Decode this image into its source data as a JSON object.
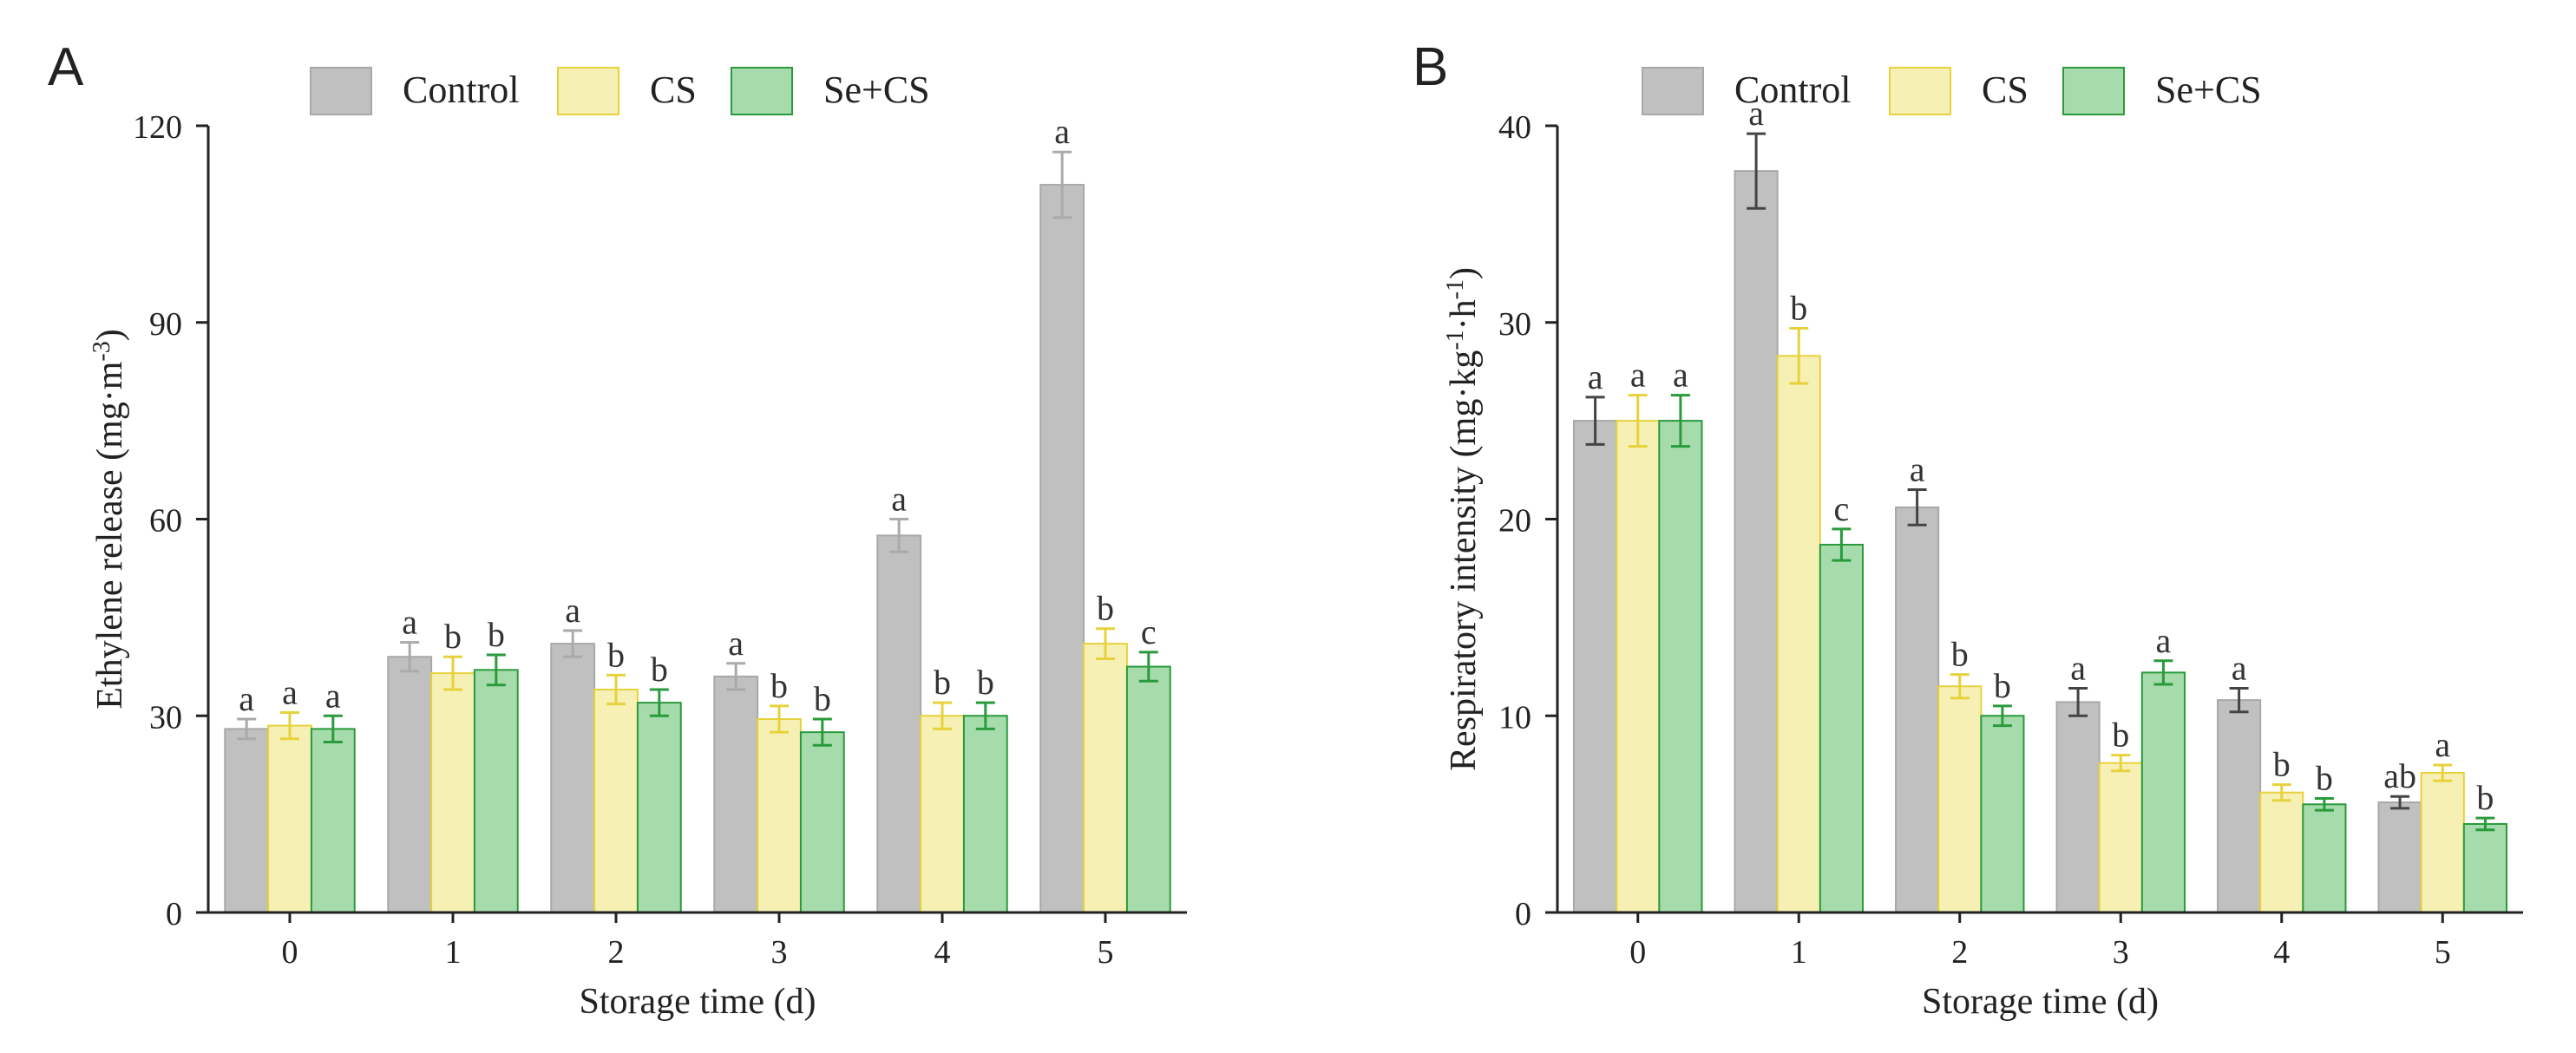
{
  "figure": {
    "colors": {
      "control_fill": "#c0c0c0",
      "control_stroke": "#a8a8a8",
      "control_err_left": "#aaaaaa",
      "control_err_right": "#444444",
      "cs_fill": "#f6f0b4",
      "cs_stroke": "#e6d23c",
      "cs_err": "#e6d23c",
      "secs_fill": "#a6dcac",
      "secs_stroke": "#2a9a3c",
      "secs_err": "#2a9a3c",
      "axis": "#222222",
      "text": "#222222"
    }
  },
  "chart_data": [
    {
      "type": "bar",
      "panel_label": "A",
      "xlabel": "Storage time (d)",
      "ylabel": "Ethylene release (mg·m",
      "ylabel_sup": "-3",
      "ylabel_tail": ")",
      "ylim": [
        0,
        120
      ],
      "yticks": [
        0,
        30,
        60,
        90,
        120
      ],
      "categories": [
        "0",
        "1",
        "2",
        "3",
        "4",
        "5"
      ],
      "legend_position": "top",
      "control_err_style": "light",
      "series": [
        {
          "name": "Control",
          "values": [
            28,
            39,
            41,
            36,
            57.5,
            111
          ],
          "errors": [
            1.5,
            2.2,
            2.0,
            2.0,
            2.5,
            5.0
          ],
          "letters": [
            "a",
            "a",
            "a",
            "a",
            "a",
            "a"
          ]
        },
        {
          "name": "CS",
          "values": [
            28.5,
            36.5,
            34,
            29.5,
            30,
            41
          ],
          "errors": [
            2.0,
            2.5,
            2.2,
            2.0,
            2.0,
            2.3
          ],
          "letters": [
            "a",
            "b",
            "b",
            "b",
            "b",
            "b"
          ]
        },
        {
          "name": "Se+CS",
          "values": [
            28,
            37,
            32,
            27.5,
            30,
            37.5
          ],
          "errors": [
            2.0,
            2.3,
            2.0,
            2.0,
            2.0,
            2.2
          ],
          "letters": [
            "a",
            "b",
            "b",
            "b",
            "b",
            "c"
          ]
        }
      ]
    },
    {
      "type": "bar",
      "panel_label": "B",
      "xlabel": "Storage time (d)",
      "ylabel": "Respiratory intensity (mg·kg",
      "ylabel_sup": "-1",
      "ylabel_mid": "·h",
      "ylabel_sup2": "-1",
      "ylabel_tail": ")",
      "ylim": [
        0,
        40
      ],
      "yticks": [
        0,
        10,
        20,
        30,
        40
      ],
      "categories": [
        "0",
        "1",
        "2",
        "3",
        "4",
        "5"
      ],
      "legend_position": "top",
      "control_err_style": "dark",
      "series": [
        {
          "name": "Control",
          "values": [
            25,
            37.7,
            20.6,
            10.7,
            10.8,
            5.6
          ],
          "errors": [
            1.2,
            1.9,
            0.9,
            0.7,
            0.6,
            0.3
          ],
          "letters": [
            "a",
            "a",
            "a",
            "a",
            "a",
            "ab"
          ]
        },
        {
          "name": "CS",
          "values": [
            25,
            28.3,
            11.5,
            7.6,
            6.1,
            7.1
          ],
          "errors": [
            1.3,
            1.4,
            0.6,
            0.4,
            0.4,
            0.4
          ],
          "letters": [
            "a",
            "b",
            "b",
            "b",
            "b",
            "a"
          ]
        },
        {
          "name": "Se+CS",
          "values": [
            25,
            18.7,
            10.0,
            12.2,
            5.5,
            4.5
          ],
          "errors": [
            1.3,
            0.8,
            0.5,
            0.6,
            0.3,
            0.3
          ],
          "letters": [
            "a",
            "c",
            "b",
            "a",
            "b",
            "b"
          ]
        }
      ]
    }
  ]
}
